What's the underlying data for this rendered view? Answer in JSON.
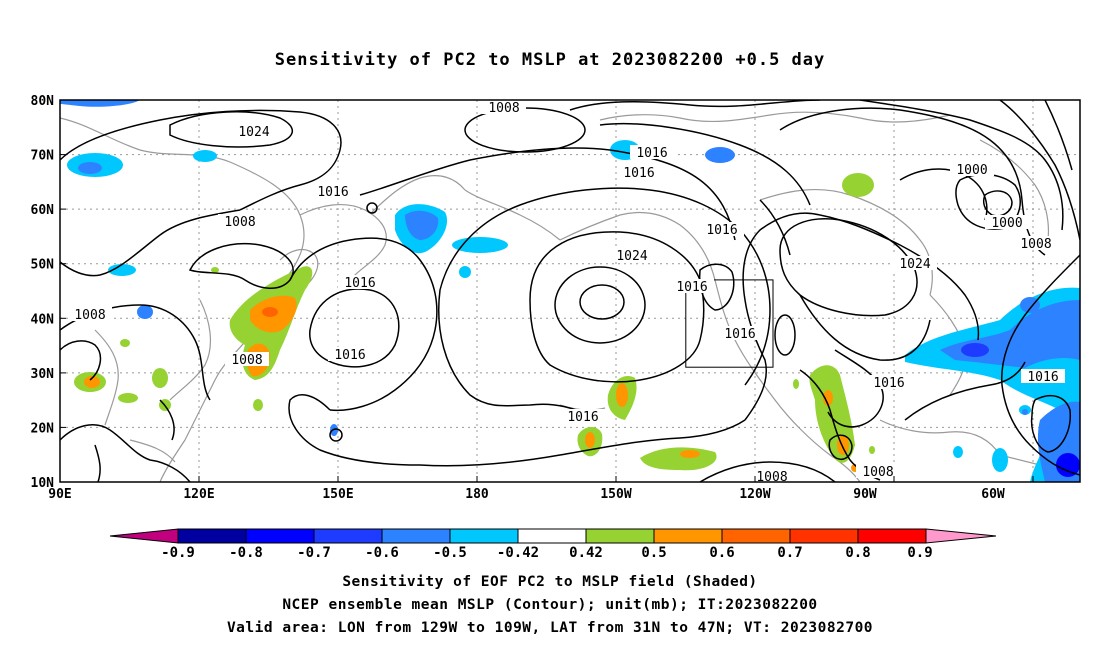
{
  "title": "Sensitivity of PC2 to MSLP at 2023082200 +0.5 day",
  "axes": {
    "lat_labels": [
      "80N",
      "70N",
      "60N",
      "50N",
      "40N",
      "30N",
      "20N",
      "10N"
    ],
    "lon_labels": [
      "90E",
      "120E",
      "150E",
      "180",
      "150W",
      "120W",
      "90W",
      "60W"
    ],
    "lon_range_east": [
      90,
      310
    ],
    "lat_range": [
      10,
      80
    ]
  },
  "colorbar": {
    "tick_labels": [
      "-0.9",
      "-0.8",
      "-0.7",
      "-0.6",
      "-0.5",
      "-0.42",
      "0.42",
      "0.5",
      "0.6",
      "0.7",
      "0.8",
      "0.9"
    ],
    "colors": [
      "#c0007f",
      "#0000a0",
      "#0000ff",
      "#1e3cff",
      "#2d82ff",
      "#00c8ff",
      "#ffffff",
      "#96d232",
      "#ff9600",
      "#ff6400",
      "#ff3200",
      "#ff0000",
      "#ff99cc"
    ]
  },
  "contour_labels": {
    "c1008_north": "1008",
    "c1024_arctic": "1024",
    "c1016_pole": "1016",
    "c1016_north": "1016",
    "c1016_asia": "1016",
    "c1008_asia": "1008",
    "c1016_nw": "1016",
    "c1024_pac": "1024",
    "c1016_rockies": "1016",
    "c1016_box1": "1016",
    "c1016_box2": "1016",
    "c1016_w1": "1016",
    "c1016_w2": "1016",
    "c1008_west": "1008",
    "c1008_scs": "1008",
    "c1016_trop": "1016",
    "c1008_mex": "1008",
    "c1016_gulf": "1016",
    "c1008_car": "1008",
    "c1000_a": "1000",
    "c1000_b": "1000",
    "c1024_atl": "1024",
    "c1008_atl": "1008",
    "c1016_atl": "1016"
  },
  "valid_area": {
    "lon_from": "129W",
    "lon_to": "109W",
    "lat_from": "31N",
    "lat_to": "47N"
  },
  "captions": {
    "line1": "Sensitivity of EOF PC2 to MSLP field (Shaded)",
    "line2": "NCEP ensemble mean MSLP (Contour); unit(mb); IT:2023082200",
    "line3": "Valid area: LON from 129W to 109W, LAT from 31N to 47N; VT: 2023082700"
  }
}
